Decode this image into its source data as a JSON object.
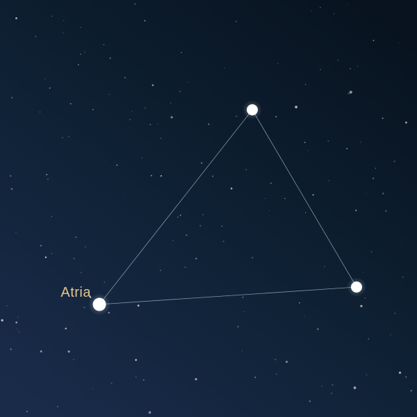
{
  "sky": {
    "background_top": "#08131f",
    "background_bottom": "#1a2b4a",
    "line_color": "#a9bfc9",
    "star_color": "#ffffff",
    "label_color": "#e8c48e"
  },
  "constellation": {
    "stars": [
      {
        "id": "atria",
        "label": "Atria"
      },
      {
        "id": "top",
        "label": ""
      },
      {
        "id": "right",
        "label": ""
      }
    ]
  }
}
